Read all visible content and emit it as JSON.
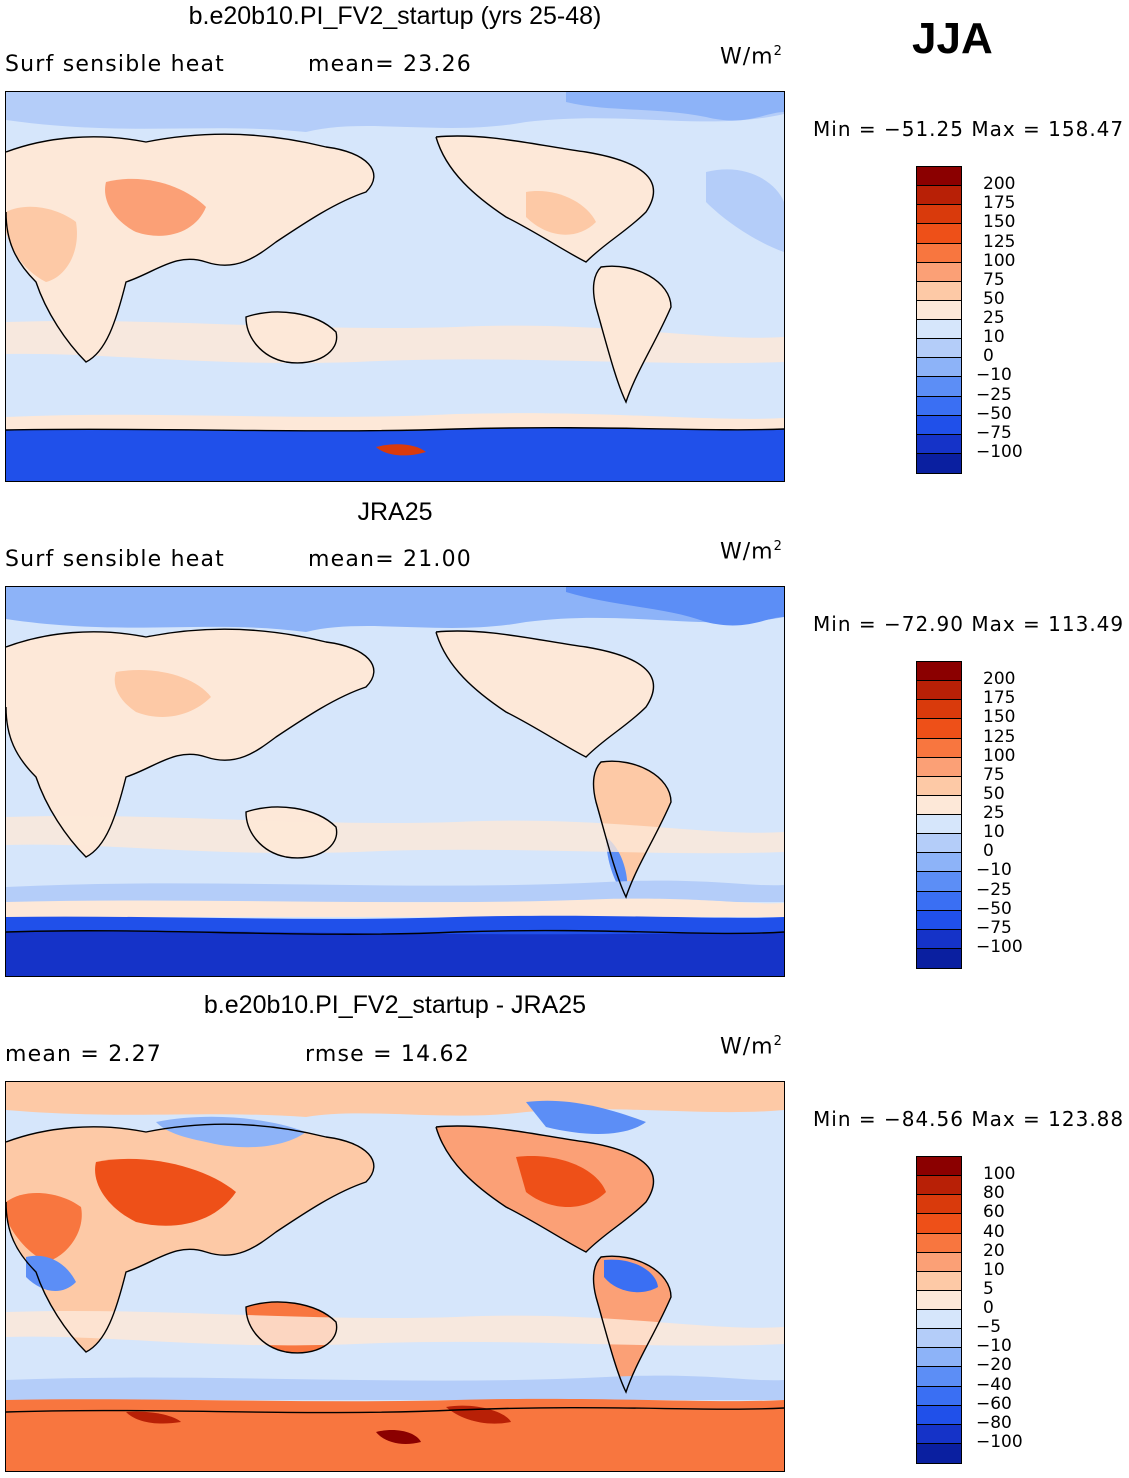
{
  "season": "JJA",
  "colors": {
    "abs_levels": [
      "#8b0000",
      "#b82006",
      "#d93a0c",
      "#ee5018",
      "#f8763f",
      "#fba076",
      "#fdc9a6",
      "#fde8d8",
      "#d6e6fb",
      "#b4cdf9",
      "#8db3f8",
      "#5c8ef6",
      "#3a6ff3",
      "#2050ea",
      "#1533c8",
      "#0a1fa0",
      "#00067a"
    ],
    "diff_levels": [
      "#8b0000",
      "#b82006",
      "#d93a0c",
      "#ee5018",
      "#f8763f",
      "#fba076",
      "#fdc9a6",
      "#fde8d8",
      "#d6e6fb",
      "#b4cdf9",
      "#8db3f8",
      "#5c8ef6",
      "#3a6ff3",
      "#2050ea",
      "#1533c8",
      "#0a1fa0",
      "#00067a"
    ]
  },
  "panels": [
    {
      "title": "b.e20b10.PI_FV2_startup (yrs 25-48)",
      "left_label": "Surf  sensible  heat",
      "mid_label": "mean=   23.26",
      "units": "W/m",
      "units_sup": "2",
      "minmax": "Min  =  −51.25  Max  =  158.47",
      "colorbar_labels": [
        "200",
        "175",
        "150",
        "125",
        "100",
        "75",
        "50",
        "25",
        "10",
        "0",
        "−10",
        "−25",
        "−50",
        "−75",
        "−100"
      ]
    },
    {
      "title": "JRA25",
      "left_label": "Surf  sensible  heat",
      "mid_label": "mean=   21.00",
      "units": "W/m",
      "units_sup": "2",
      "minmax": "Min  =  −72.90  Max  =  113.49",
      "colorbar_labels": [
        "200",
        "175",
        "150",
        "125",
        "100",
        "75",
        "50",
        "25",
        "10",
        "0",
        "−10",
        "−25",
        "−50",
        "−75",
        "−100"
      ]
    },
    {
      "title": "b.e20b10.PI_FV2_startup - JRA25",
      "left_label": "mean  =     2.27",
      "mid_label": "rmse  =    14.62",
      "units": "W/m",
      "units_sup": "2",
      "minmax": "Min  =  −84.56  Max  =  123.88",
      "colorbar_labels": [
        "100",
        "80",
        "60",
        "40",
        "20",
        "10",
        "5",
        "0",
        "−5",
        "−10",
        "−20",
        "−40",
        "−60",
        "−80",
        "−100"
      ]
    }
  ],
  "chart_data": [
    {
      "type": "heatmap",
      "title": "b.e20b10.PI_FV2_startup (yrs 25-48)",
      "variable": "Surf sensible heat",
      "units": "W/m2",
      "season": "JJA",
      "mean": 23.26,
      "min": -51.25,
      "max": 158.47,
      "contour_levels": [
        -100,
        -75,
        -50,
        -25,
        -10,
        0,
        10,
        25,
        50,
        75,
        100,
        125,
        150,
        175,
        200
      ],
      "projection": "cylindrical equidistant global map"
    },
    {
      "type": "heatmap",
      "title": "JRA25",
      "variable": "Surf sensible heat",
      "units": "W/m2",
      "season": "JJA",
      "mean": 21.0,
      "min": -72.9,
      "max": 113.49,
      "contour_levels": [
        -100,
        -75,
        -50,
        -25,
        -10,
        0,
        10,
        25,
        50,
        75,
        100,
        125,
        150,
        175,
        200
      ],
      "projection": "cylindrical equidistant global map"
    },
    {
      "type": "heatmap",
      "title": "b.e20b10.PI_FV2_startup - JRA25",
      "units": "W/m2",
      "season": "JJA",
      "mean": 2.27,
      "rmse": 14.62,
      "min": -84.56,
      "max": 123.88,
      "contour_levels": [
        -100,
        -80,
        -60,
        -40,
        -20,
        -10,
        -5,
        0,
        5,
        10,
        20,
        40,
        60,
        80,
        100
      ],
      "projection": "cylindrical equidistant global map"
    }
  ]
}
